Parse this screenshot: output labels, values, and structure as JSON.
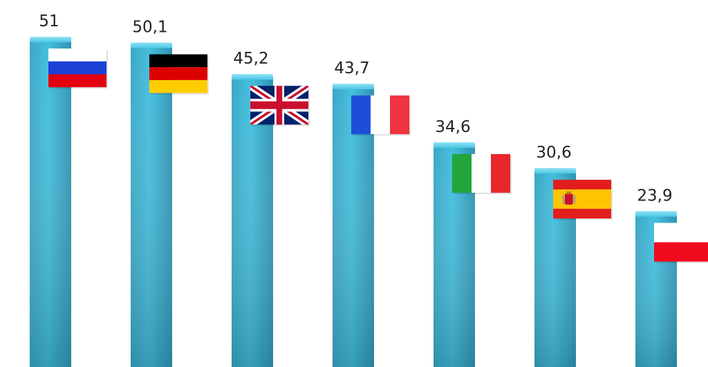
{
  "chart_data": {
    "type": "bar",
    "title": "",
    "xlabel": "",
    "ylabel": "",
    "categories": [
      "Russia",
      "Germany",
      "United Kingdom",
      "France",
      "Italy",
      "Spain",
      "Poland"
    ],
    "values": [
      51,
      50.1,
      45.2,
      43.7,
      34.6,
      30.6,
      23.9
    ],
    "value_labels": [
      "51",
      "50,1",
      "45,2",
      "43,7",
      "34,6",
      "30,6",
      "23,9"
    ],
    "flag_icons": [
      "russia-flag-icon",
      "germany-flag-icon",
      "uk-flag-icon",
      "france-flag-icon",
      "italy-flag-icon",
      "spain-flag-icon",
      "poland-flag-icon"
    ],
    "bar_color": "#3fbad9",
    "grid": false,
    "legend": "none"
  }
}
